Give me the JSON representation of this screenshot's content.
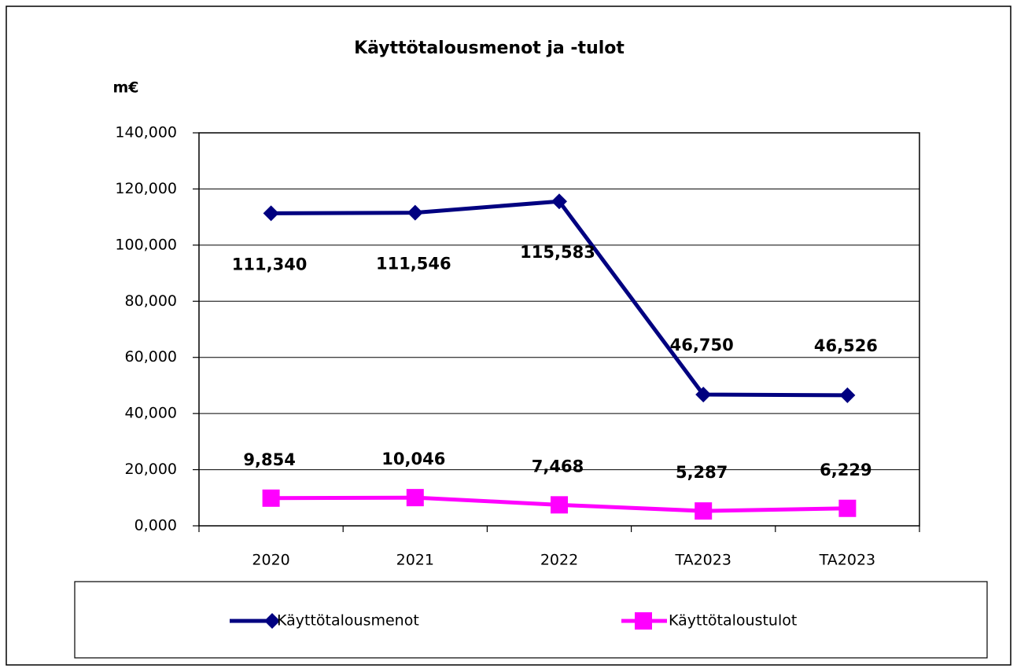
{
  "chart_data": {
    "type": "line",
    "title": "Käyttötalousmenot ja -tulot",
    "y_label": "m€",
    "categories": [
      "2020",
      "2021",
      "2022",
      "TA2023",
      "TA2023"
    ],
    "series": [
      {
        "name": "Käyttötalousmenot",
        "color": "#000080",
        "marker": "diamond",
        "values": [
          111340,
          111546,
          115583,
          46750,
          46526
        ],
        "value_labels": [
          "111,340",
          "111,546",
          "115,583",
          "46,750",
          "46,526"
        ]
      },
      {
        "name": "Käyttötaloustulot",
        "color": "#ff00ff",
        "marker": "square",
        "values": [
          9854,
          10046,
          7468,
          5287,
          6229
        ],
        "value_labels": [
          "9,854",
          "10,046",
          "7,468",
          "5,287",
          "6,229"
        ]
      }
    ],
    "ylim": [
      0,
      140000
    ],
    "yticks": [
      {
        "value": 0,
        "label": "0,000"
      },
      {
        "value": 20000,
        "label": "20,000"
      },
      {
        "value": 40000,
        "label": "40,000"
      },
      {
        "value": 60000,
        "label": "60,000"
      },
      {
        "value": 80000,
        "label": "80,000"
      },
      {
        "value": 100000,
        "label": "100,000"
      },
      {
        "value": 120000,
        "label": "120,000"
      },
      {
        "value": 140000,
        "label": "140,000"
      }
    ],
    "grid": true,
    "legend": "bottom"
  }
}
